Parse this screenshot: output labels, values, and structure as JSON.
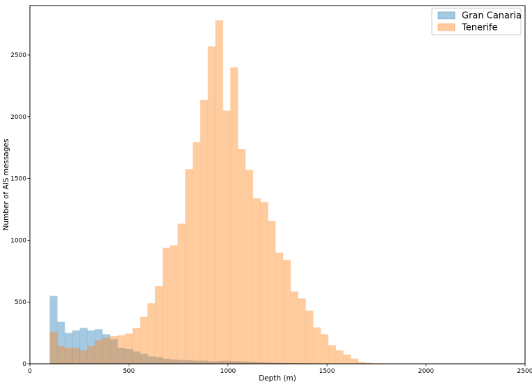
{
  "chart_data": {
    "type": "histogram",
    "xlabel": "Depth (m)",
    "ylabel": "Number of AIS messages",
    "xlim": [
      0,
      2500
    ],
    "ylim": [
      0,
      2900
    ],
    "xticks": [
      "0",
      "500",
      "1000",
      "1500",
      "2000",
      "2500"
    ],
    "yticks": [
      "0",
      "500",
      "1000",
      "1500",
      "2000",
      "2500"
    ],
    "bin_start": 100,
    "bin_width": 38,
    "legend_position": "top-right",
    "series": [
      {
        "name": "Gran Canaria",
        "color": "#1f77b4",
        "values": [
          550,
          340,
          250,
          270,
          290,
          270,
          280,
          240,
          200,
          130,
          120,
          100,
          80,
          60,
          55,
          40,
          35,
          30,
          30,
          25,
          25,
          20,
          22,
          25,
          22,
          20,
          18,
          15,
          12,
          10,
          8,
          7,
          6,
          5,
          4,
          3,
          2,
          0,
          0,
          0,
          0,
          0,
          0,
          0,
          0,
          0,
          0,
          0,
          0,
          0,
          0,
          0,
          0
        ]
      },
      {
        "name": "Tenerife",
        "color": "#ff7f0e",
        "values": [
          260,
          145,
          130,
          130,
          110,
          145,
          190,
          210,
          225,
          230,
          245,
          290,
          380,
          490,
          630,
          940,
          960,
          1135,
          1575,
          1795,
          2135,
          2570,
          2780,
          2050,
          2400,
          1740,
          1570,
          1340,
          1310,
          1155,
          900,
          840,
          585,
          530,
          430,
          295,
          240,
          150,
          110,
          75,
          42,
          15,
          8,
          4,
          2,
          0,
          0,
          0,
          0,
          0,
          0,
          0,
          0
        ]
      }
    ]
  }
}
